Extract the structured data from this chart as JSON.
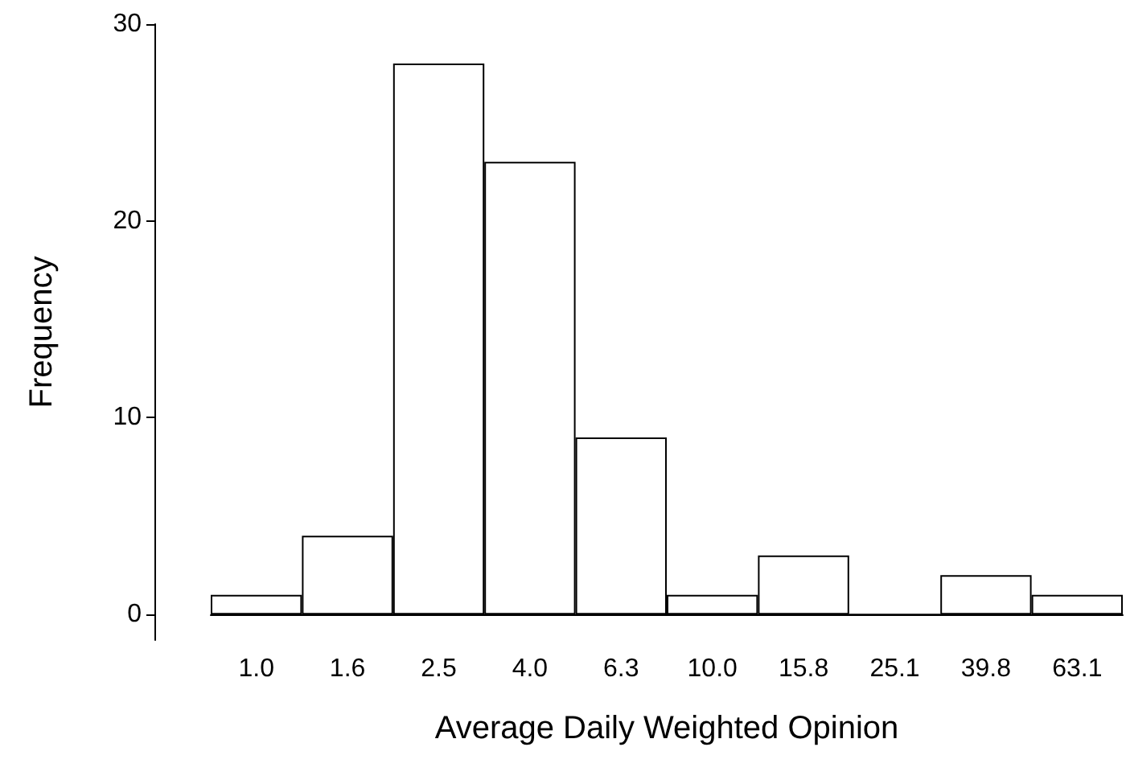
{
  "chart_data": {
    "type": "bar",
    "xlabel": "Average Daily Weighted Opinion",
    "ylabel": "Frequency",
    "categories": [
      "1.0",
      "1.6",
      "2.5",
      "4.0",
      "6.3",
      "10.0",
      "15.8",
      "25.1",
      "39.8",
      "63.1"
    ],
    "values": [
      1,
      4,
      28,
      23,
      9,
      1,
      3,
      0,
      2,
      1
    ],
    "color": "#ffffff",
    "ylim": [
      -1.3,
      30
    ],
    "yticks": [
      0,
      10,
      20,
      30
    ],
    "grid": false
  }
}
